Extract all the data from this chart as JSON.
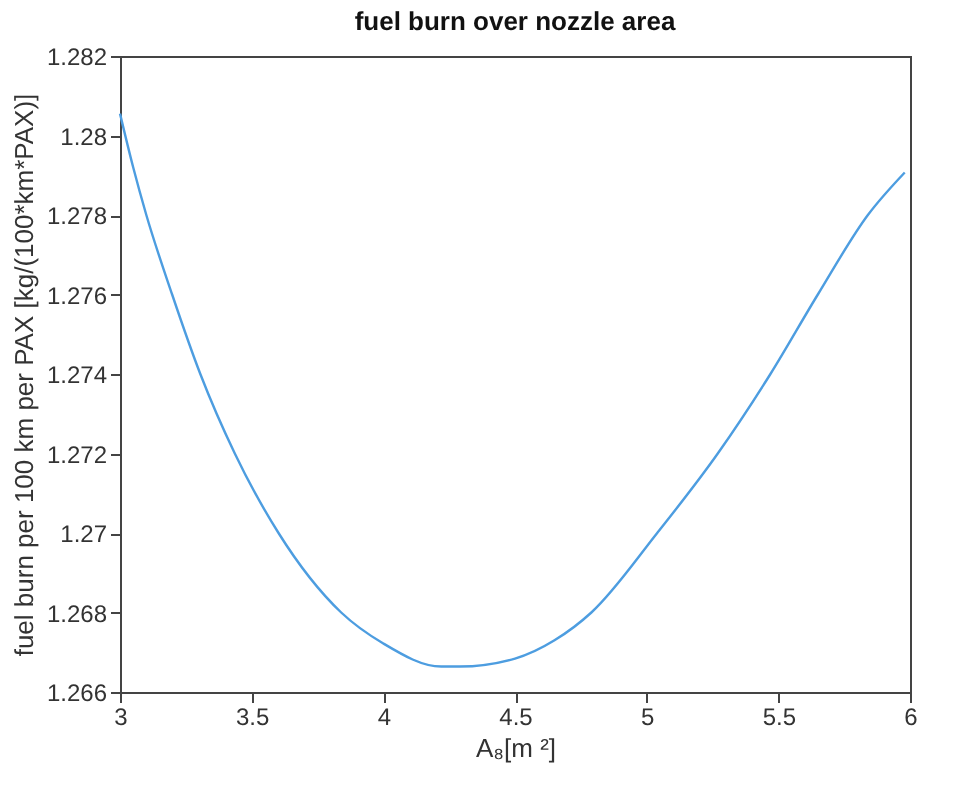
{
  "chart_data": {
    "type": "line",
    "title": "fuel burn over nozzle area",
    "xlabel": "A₈[m ²]",
    "ylabel": "fuel burn per 100 km per PAX [kg/(100*km*PAX)]",
    "x": [
      3.0,
      3.05,
      3.1,
      3.198,
      3.305,
      3.436,
      3.602,
      3.84,
      4.0,
      4.22,
      4.29,
      4.5,
      4.65,
      4.79,
      5.04,
      5.27,
      5.47,
      5.65,
      5.84,
      5.98
    ],
    "series": [
      {
        "color": "#4d9de0",
        "values": [
          1.28055,
          1.2792,
          1.278,
          1.276,
          1.274,
          1.272,
          1.27,
          1.268,
          1.26722,
          1.26664,
          1.26664,
          1.26684,
          1.2673,
          1.268,
          1.27,
          1.272,
          1.274,
          1.276,
          1.278,
          1.27907
        ]
      }
    ],
    "xlim": [
      3,
      6
    ],
    "xticks": [
      3,
      3.5,
      4,
      4.5,
      5,
      5.5,
      6
    ],
    "ylim": [
      1.266,
      1.282
    ],
    "yticks": [
      1.266,
      1.268,
      1.27,
      1.272,
      1.274,
      1.276,
      1.278,
      1.28,
      1.282
    ],
    "grid": false,
    "marker": "none",
    "line_style": "solid"
  }
}
